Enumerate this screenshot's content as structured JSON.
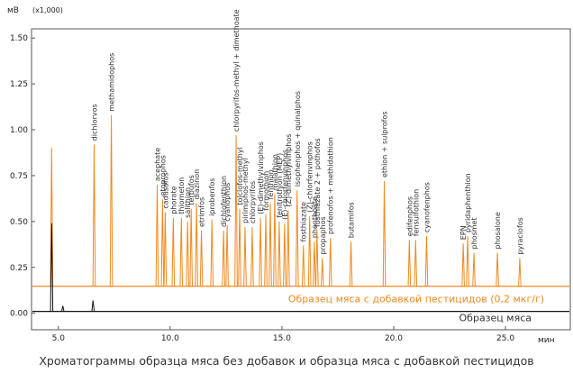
{
  "chart_data": {
    "type": "chromatogram",
    "y_label": "мВ",
    "y_scale_note": "(x1,000)",
    "x_label": "мин",
    "caption": "Хроматограммы образца мяса без добавок и образца мяса с добавкой пестицидов",
    "xlim": [
      3.8,
      27.9
    ],
    "ylim": [
      -0.09,
      1.55
    ],
    "xticks": [
      {
        "value": 5,
        "label": "5.0"
      },
      {
        "value": 10,
        "label": "10.0"
      },
      {
        "value": 15,
        "label": "15.0"
      },
      {
        "value": 20,
        "label": "20.0"
      },
      {
        "value": 25,
        "label": "25.0"
      }
    ],
    "yticks": [
      {
        "value": 0,
        "label": "0.00"
      },
      {
        "value": 0.25,
        "label": "0.25"
      },
      {
        "value": 0.5,
        "label": "0.50"
      },
      {
        "value": 0.75,
        "label": "0.75"
      },
      {
        "value": 1,
        "label": "1.00"
      },
      {
        "value": 1.25,
        "label": "1.25"
      },
      {
        "value": 1.5,
        "label": "1.50"
      }
    ],
    "series": [
      {
        "name": "Образец мяса с добавкой пестицидов (0,2 мкг/г)",
        "color": "#f0891e",
        "baseline": 0.147,
        "x": [
          4.7,
          6.6,
          7.37,
          9.42,
          9.66,
          9.78,
          10.14,
          10.5,
          10.78,
          10.94,
          11.18,
          11.4,
          11.87,
          12.39,
          12.55,
          12.95,
          13.11,
          13.35,
          13.67,
          14.04,
          14.28,
          14.48,
          14.68,
          14.88,
          15.12,
          15.28,
          15.68,
          15.96,
          16.24,
          16.45,
          16.57,
          16.81,
          17.17,
          18.09,
          19.58,
          20.7,
          20.98,
          21.47,
          23.11,
          23.31,
          23.59,
          24.64,
          25.64
        ],
        "values": [
          0.9,
          0.92,
          1.08,
          0.7,
          0.62,
          0.55,
          0.52,
          0.52,
          0.5,
          0.57,
          0.6,
          0.45,
          0.51,
          0.45,
          0.48,
          0.97,
          0.57,
          0.47,
          0.47,
          0.52,
          0.54,
          0.6,
          0.65,
          0.5,
          0.49,
          0.56,
          0.67,
          0.37,
          0.53,
          0.39,
          0.45,
          0.3,
          0.41,
          0.39,
          0.72,
          0.4,
          0.4,
          0.42,
          0.38,
          0.42,
          0.33,
          0.33,
          0.3
        ],
        "labels": [
          null,
          "dichlorvos",
          "methamidophos",
          "acephate",
          "etoprophos",
          "cadusafos",
          "phorate",
          "thiometon",
          "salithion",
          "terbufos",
          "diazinon",
          "etrimfos",
          "iprobenfos",
          "dichlofenthion",
          "cyanophos",
          "chlorpyrifos-methyl + dimethoate",
          "tolclofos-methyl",
          "pirimiphos-methyl",
          "chlorpyrifos",
          "(E)-dimethylvinphos",
          "formothion",
          "fenthion",
          "malathion",
          "fenitrothion (MEP)",
          "(E)-chlorfenvinphos",
          "(Z)-dimethylvinphos",
          "isophenphos + quinalphos",
          "fosthiazate",
          "(Z)-chlorfenvinphos",
          "phenthoate",
          "fosthiazate 2 + pothofos",
          "propaphos",
          "profenofos + methidathion",
          "butamifos",
          "ethion + sulprofos",
          "edifenphos",
          "fensulfothion",
          "cyanofenphos",
          "EPN",
          "pyridaphenthion",
          "phosmet",
          "phosalone",
          "pyraclofos"
        ]
      },
      {
        "name": "Образец мяса",
        "color": "#111111",
        "baseline": 0.01,
        "x": [
          4.7,
          5.2,
          6.55
        ],
        "values": [
          0.49,
          0.04,
          0.07
        ],
        "labels": [
          null,
          null,
          null
        ]
      }
    ]
  }
}
